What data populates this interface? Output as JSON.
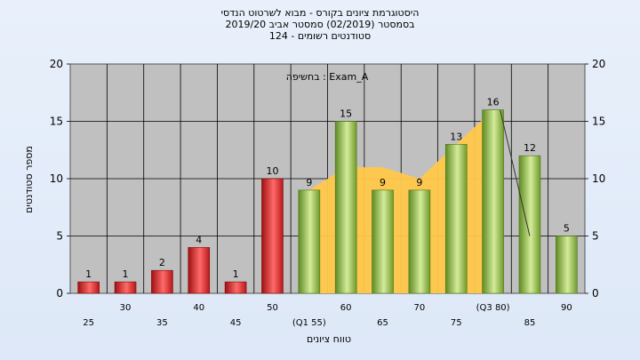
{
  "chart_data": {
    "type": "bar",
    "title_lines": [
      "היסטוגרמת ציונים בקורס - מבוא לשרטוט הנדסי",
      "בסמסטר  (02/2019)  סמסטר אביב 2019/20",
      "סטודנטים רשומים - 124"
    ],
    "annotation": "בחשיפה : Exam_A",
    "xlabel": "טווח ציונים",
    "ylabel": "מספר סטודנטים",
    "ylim": [
      0,
      20
    ],
    "yticks": [
      "0",
      "5",
      "10",
      "15",
      "20"
    ],
    "categories": [
      "25",
      "30",
      "35",
      "40",
      "45",
      "50",
      "(Q1 55)",
      "60",
      "65",
      "70",
      "75",
      "(Q3 80)",
      "85",
      "90"
    ],
    "values": [
      1,
      1,
      2,
      4,
      1,
      10,
      9,
      15,
      9,
      9,
      13,
      16,
      12,
      5
    ],
    "value_labels": [
      "1",
      "1",
      "2",
      "4",
      "1",
      "10",
      "9",
      "15",
      "9",
      "9",
      "13",
      "16",
      "12",
      "5"
    ],
    "bar_colors": [
      "#d42a2a",
      "#d42a2a",
      "#d42a2a",
      "#d42a2a",
      "#d42a2a",
      "#d42a2a",
      "#8fc04a",
      "#8fc04a",
      "#8fc04a",
      "#8fc04a",
      "#8fc04a",
      "#8fc04a",
      "#8fc04a",
      "#8fc04a"
    ],
    "band_range": [
      "(Q1 55)",
      "(Q3 80)"
    ],
    "band_values": [
      9,
      11,
      11,
      10,
      13,
      16
    ],
    "band_color": "#ffc84a",
    "trend_line_values": [
      16,
      5
    ],
    "grid": true,
    "plot_background": "#c0c0c0"
  }
}
